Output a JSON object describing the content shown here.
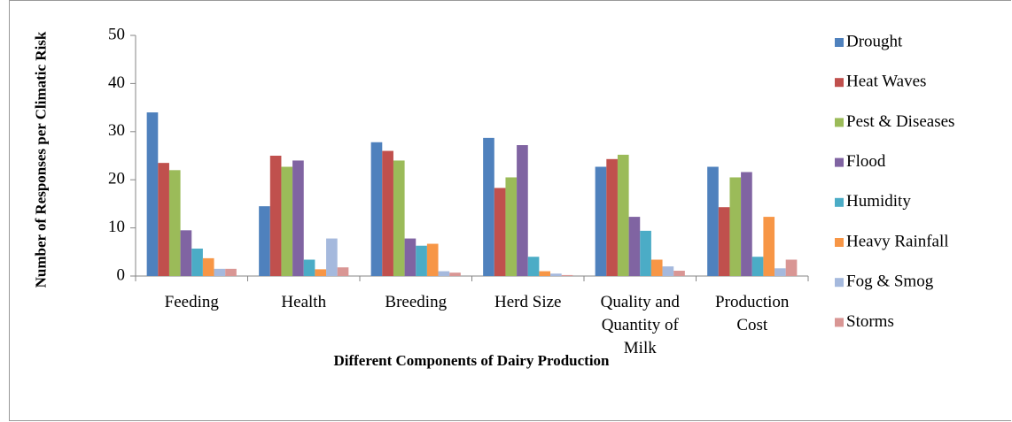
{
  "chart_data": {
    "type": "bar",
    "x_label": "Different Components of Dairy Production",
    "y_label": "Number of Responses per Climatic Risk",
    "categories": [
      "Feeding",
      "Health",
      "Breeding",
      "Herd Size",
      "Quality and Quantity of Milk",
      "Production Cost"
    ],
    "series": [
      {
        "name": "Drought",
        "color": "#4f81bd",
        "values": [
          34,
          14.5,
          27.8,
          28.7,
          22.7,
          22.7
        ]
      },
      {
        "name": "Heat Waves",
        "color": "#c0504d",
        "values": [
          23.5,
          25,
          26,
          18.3,
          24.3,
          14.3
        ]
      },
      {
        "name": "Pest & Diseases",
        "color": "#9bbb59",
        "values": [
          22,
          22.7,
          24,
          20.5,
          25.2,
          20.5
        ]
      },
      {
        "name": "Flood",
        "color": "#8064a2",
        "values": [
          9.5,
          24,
          7.8,
          27.2,
          12.3,
          21.6
        ]
      },
      {
        "name": "Humidity",
        "color": "#4bacc6",
        "values": [
          5.7,
          3.4,
          6.3,
          4,
          9.4,
          4
        ]
      },
      {
        "name": "Heavy Rainfall",
        "color": "#f79646",
        "values": [
          3.7,
          1.4,
          6.7,
          1,
          3.4,
          12.3
        ]
      },
      {
        "name": "Fog & Smog",
        "color": "#a5b9dd",
        "values": [
          1.5,
          7.8,
          1,
          0.5,
          2,
          1.6
        ]
      },
      {
        "name": "Storms",
        "color": "#d99694",
        "values": [
          1.5,
          1.8,
          0.7,
          0.2,
          1.1,
          3.4
        ]
      }
    ],
    "ylim": [
      0,
      50
    ],
    "yticks": [
      0,
      10,
      20,
      30,
      40,
      50
    ],
    "grid": false,
    "legend": "right"
  }
}
